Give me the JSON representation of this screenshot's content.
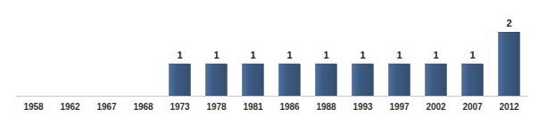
{
  "chart_data": {
    "type": "bar",
    "categories": [
      "1958",
      "1962",
      "1967",
      "1968",
      "1973",
      "1978",
      "1981",
      "1986",
      "1988",
      "1993",
      "1997",
      "2002",
      "2007",
      "2012"
    ],
    "values": [
      null,
      null,
      null,
      null,
      1,
      1,
      1,
      1,
      1,
      1,
      1,
      1,
      1,
      2
    ],
    "color": "#3d5b82",
    "ylim": [
      0,
      2
    ],
    "data_labels": true,
    "tick_labels": "x"
  }
}
